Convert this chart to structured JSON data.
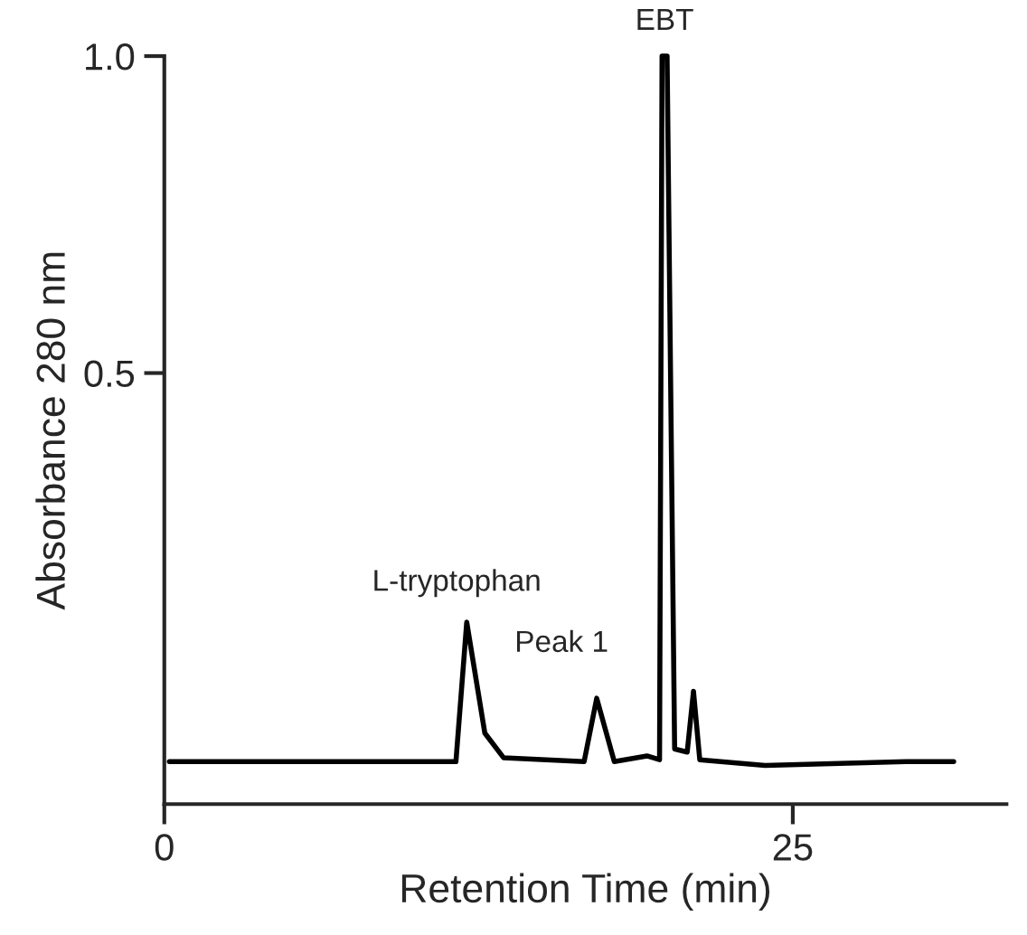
{
  "chart_data": {
    "type": "line",
    "xlabel": "Retention Time (min)",
    "ylabel": "Absorbance 280 nm",
    "xlim": [
      0,
      33.5
    ],
    "ylim": [
      -0.18,
      1.0
    ],
    "xticks": [
      0,
      25
    ],
    "yticks": [
      {
        "value": 0.5,
        "label": "0.5"
      },
      {
        "value": 1.0,
        "label": "1.0"
      }
    ],
    "grid": false,
    "legend": false,
    "marker": "none",
    "line_style": "solid",
    "series": [
      {
        "color": "#000000",
        "x": [
          0.2,
          11.6,
          12.03,
          12.75,
          13.5,
          16.7,
          17.2,
          17.9,
          19.2,
          19.7,
          19.8,
          20.0,
          20.3,
          20.8,
          21.05,
          21.3,
          23.9,
          29.5,
          31.4
        ],
        "values": [
          -0.113,
          -0.113,
          0.107,
          -0.068,
          -0.107,
          -0.113,
          -0.013,
          -0.113,
          -0.104,
          -0.11,
          1.0,
          1.0,
          -0.093,
          -0.098,
          -0.002,
          -0.11,
          -0.119,
          -0.113,
          -0.113
        ]
      }
    ],
    "annotations": [
      {
        "text": "L-tryptophan",
        "x": 12.03,
        "y": 0.107
      },
      {
        "text": "Peak 1",
        "x": 17.2,
        "y": -0.013
      },
      {
        "text": "EBT",
        "x": 19.9,
        "y": 1.0
      }
    ]
  }
}
